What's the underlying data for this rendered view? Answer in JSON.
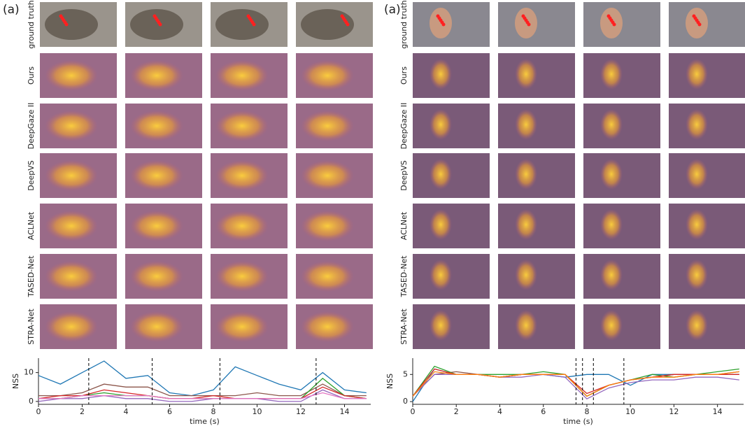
{
  "panels": [
    {
      "label": "(a)",
      "rows": [
        {
          "text": "ground truth",
          "color": "#3a8fb7"
        },
        {
          "text": "Ours",
          "color": "#e8a040"
        },
        {
          "text": "DeepGaze II",
          "color": "#3a9a3a"
        },
        {
          "text": "DeepVS",
          "color": "#c0392b"
        },
        {
          "text": "ACLNet",
          "color": "#9467bd"
        },
        {
          "text": "TASED-Net",
          "color": "#8c564b"
        },
        {
          "text": "STRA-Net",
          "color": "#e377c2"
        }
      ]
    },
    {
      "label": "(a)",
      "rows": [
        {
          "text": "ground truth",
          "color": "#3a8fb7"
        },
        {
          "text": "Ours",
          "color": "#e8a040"
        },
        {
          "text": "DeepGaze II",
          "color": "#3a9a3a"
        },
        {
          "text": "DeepVS",
          "color": "#c0392b"
        },
        {
          "text": "ACLNet",
          "color": "#9467bd"
        },
        {
          "text": "TASED-Net",
          "color": "#8c564b"
        },
        {
          "text": "STRA-Net",
          "color": "#e377c2"
        }
      ]
    }
  ],
  "chart_data": [
    {
      "type": "line",
      "ylabel": "NSS",
      "xlabel": "time (s)",
      "x": [
        0,
        1,
        2,
        3,
        4,
        5,
        6,
        7,
        8,
        9,
        10,
        11,
        12,
        13,
        14,
        15
      ],
      "xlim": [
        0,
        15.2
      ],
      "xticks": [
        0,
        2,
        4,
        6,
        8,
        10,
        12,
        14
      ],
      "ylim": [
        -1,
        15
      ],
      "yticks": [
        0,
        10
      ],
      "vlines": [
        2.3,
        5.2,
        8.3,
        12.7
      ],
      "series": [
        {
          "color": "#1f77b4",
          "values": [
            9,
            6,
            10,
            14,
            8,
            9,
            3,
            2,
            4,
            12,
            9,
            6,
            4,
            10,
            4,
            3
          ]
        },
        {
          "color": "#8c564b",
          "values": [
            2,
            2,
            3,
            6,
            5,
            5,
            2,
            2,
            2,
            2,
            3,
            2,
            2,
            6,
            2,
            2
          ]
        },
        {
          "color": "#2ca02c",
          "values": [
            1,
            1,
            2,
            3,
            2,
            2,
            1,
            1,
            1,
            1,
            1,
            1,
            1,
            8,
            2,
            1
          ]
        },
        {
          "color": "#d62728",
          "values": [
            1,
            2,
            2,
            4,
            3,
            2,
            1,
            1,
            2,
            1,
            1,
            1,
            1,
            5,
            2,
            1
          ]
        },
        {
          "color": "#9467bd",
          "values": [
            0,
            1,
            1,
            2,
            1,
            1,
            0,
            0,
            1,
            1,
            1,
            0,
            0,
            4,
            1,
            1
          ]
        },
        {
          "color": "#e377c2",
          "values": [
            1,
            1,
            2,
            2,
            2,
            2,
            1,
            1,
            1,
            1,
            1,
            1,
            1,
            3,
            1,
            1
          ]
        }
      ]
    },
    {
      "type": "line",
      "ylabel": "NSS",
      "xlabel": "time (s)",
      "x": [
        0,
        1,
        2,
        3,
        4,
        5,
        6,
        7,
        8,
        9,
        10,
        11,
        12,
        13,
        14,
        15
      ],
      "xlim": [
        0,
        15.2
      ],
      "xticks": [
        0,
        2,
        4,
        6,
        8,
        10,
        12,
        14
      ],
      "ylim": [
        -0.5,
        8
      ],
      "yticks": [
        0,
        5
      ],
      "vlines": [
        7.5,
        7.8,
        8.3,
        9.7
      ],
      "series": [
        {
          "color": "#1f77b4",
          "values": [
            0,
            6,
            5,
            5,
            4.5,
            5,
            5,
            4.5,
            5,
            5,
            3,
            5,
            5,
            5,
            5,
            5
          ]
        },
        {
          "color": "#8c564b",
          "values": [
            1,
            5,
            5.5,
            5,
            4.5,
            5,
            5,
            5,
            1,
            3,
            4,
            4.5,
            5,
            5,
            5,
            5.5
          ]
        },
        {
          "color": "#2ca02c",
          "values": [
            1,
            6.5,
            5,
            5,
            5,
            5,
            5.5,
            5,
            1,
            3,
            4,
            5,
            4.5,
            5,
            5.5,
            6
          ]
        },
        {
          "color": "#d62728",
          "values": [
            1,
            6,
            5,
            5,
            4.5,
            5,
            5,
            5,
            1.5,
            3,
            4,
            4.5,
            5,
            5,
            5,
            5
          ]
        },
        {
          "color": "#9467bd",
          "values": [
            1,
            5,
            5,
            5,
            4.5,
            4.5,
            5,
            4.5,
            0.5,
            2.5,
            3.5,
            4,
            4,
            4.5,
            4.5,
            4
          ]
        },
        {
          "color": "#ff7f0e",
          "values": [
            1,
            5.5,
            5,
            5,
            4.5,
            5,
            5,
            5,
            1,
            3,
            4,
            4.5,
            4.5,
            5,
            5,
            5.5
          ]
        }
      ]
    }
  ]
}
